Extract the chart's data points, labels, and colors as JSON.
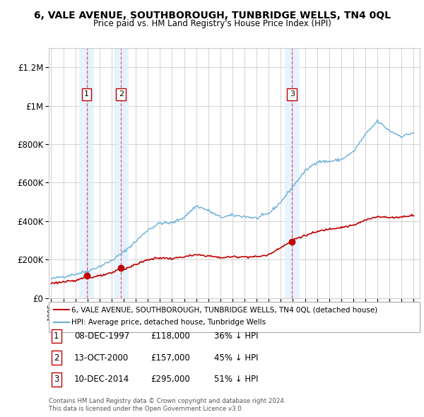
{
  "title": "6, VALE AVENUE, SOUTHBOROUGH, TUNBRIDGE WELLS, TN4 0QL",
  "subtitle": "Price paid vs. HM Land Registry's House Price Index (HPI)",
  "legend_house": "6, VALE AVENUE, SOUTHBOROUGH, TUNBRIDGE WELLS, TN4 0QL (detached house)",
  "legend_hpi": "HPI: Average price, detached house, Tunbridge Wells",
  "footer1": "Contains HM Land Registry data © Crown copyright and database right 2024.",
  "footer2": "This data is licensed under the Open Government Licence v3.0.",
  "sales": [
    {
      "num": 1,
      "date": "08-DEC-1997",
      "price": 118000,
      "pct": "36% ↓ HPI",
      "year": 1997.93
    },
    {
      "num": 2,
      "date": "13-OCT-2000",
      "price": 157000,
      "pct": "45% ↓ HPI",
      "year": 2000.78
    },
    {
      "num": 3,
      "date": "10-DEC-2014",
      "price": 295000,
      "pct": "51% ↓ HPI",
      "year": 2014.93
    }
  ],
  "ylim": [
    0,
    1300000
  ],
  "xlim": [
    1994.8,
    2025.5
  ],
  "hpi_color": "#6aaed6",
  "price_color": "#c00000",
  "vline_color": "#e06060",
  "grid_color": "#cccccc",
  "bg_color": "#ffffff",
  "shade_color": "#ddeeff",
  "hpi_base": {
    "1995": 100000,
    "1996": 112000,
    "1997": 125000,
    "1998": 140000,
    "1999": 165000,
    "2000": 195000,
    "2001": 240000,
    "2002": 295000,
    "2003": 355000,
    "2004": 390000,
    "2005": 390000,
    "2006": 420000,
    "2007": 480000,
    "2008": 455000,
    "2009": 420000,
    "2010": 430000,
    "2011": 425000,
    "2012": 415000,
    "2013": 440000,
    "2014": 500000,
    "2015": 580000,
    "2016": 660000,
    "2017": 710000,
    "2018": 710000,
    "2019": 720000,
    "2020": 760000,
    "2021": 850000,
    "2022": 920000,
    "2023": 870000,
    "2024": 840000,
    "2025": 860000
  },
  "price_base": {
    "1995": 78000,
    "1996": 84000,
    "1997": 90000,
    "1997.93": 118000,
    "1998": 105000,
    "1999": 115000,
    "2000": 130000,
    "2000.78": 157000,
    "2001": 150000,
    "2002": 175000,
    "2003": 200000,
    "2004": 210000,
    "2005": 205000,
    "2006": 215000,
    "2007": 225000,
    "2008": 220000,
    "2009": 210000,
    "2010": 215000,
    "2011": 215000,
    "2012": 215000,
    "2013": 225000,
    "2014": 265000,
    "2014.93": 295000,
    "2015": 305000,
    "2016": 325000,
    "2017": 345000,
    "2018": 360000,
    "2019": 368000,
    "2020": 378000,
    "2021": 405000,
    "2022": 425000,
    "2023": 418000,
    "2024": 422000,
    "2025": 432000
  }
}
